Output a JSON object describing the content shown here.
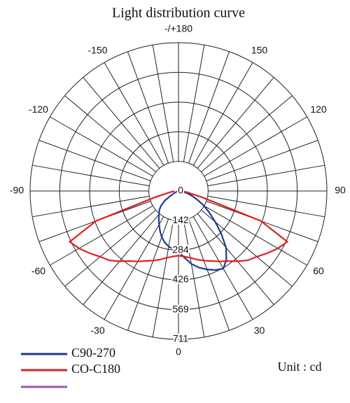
{
  "chart_data": {
    "type": "polar",
    "title": "Light distribution curve",
    "unit_label": "Unit : cd",
    "theta": [
      -90,
      -85,
      -80,
      -75,
      -70,
      -65,
      -60,
      -55,
      -50,
      -45,
      -40,
      -35,
      -30,
      -25,
      -20,
      -15,
      -10,
      -5,
      0,
      5,
      10,
      15,
      20,
      25,
      30,
      35,
      40,
      45,
      50,
      55,
      60,
      65,
      70,
      75,
      80,
      85,
      90
    ],
    "series": [
      {
        "name": "C90-270",
        "color": "#1f3a93",
        "values": [
          0,
          0,
          0,
          0,
          10,
          20,
          40,
          80,
          110,
          130,
          145,
          165,
          185,
          210,
          235,
          255,
          270,
          280,
          290,
          320,
          355,
          380,
          400,
          418,
          430,
          400,
          355,
          290,
          230,
          180,
          140,
          100,
          70,
          45,
          25,
          10,
          0
        ]
      },
      {
        "name": "CO-C180",
        "color": "#e02020",
        "values": [
          20,
          30,
          50,
          120,
          420,
          575,
          550,
          520,
          490,
          470,
          440,
          410,
          390,
          370,
          355,
          340,
          325,
          315,
          310,
          315,
          325,
          340,
          355,
          370,
          390,
          410,
          440,
          470,
          490,
          520,
          550,
          575,
          420,
          120,
          50,
          30,
          20
        ]
      }
    ],
    "rlim": [
      0,
      711
    ],
    "rticks": [
      0,
      142,
      284,
      426,
      569,
      711
    ],
    "thetaticks": [
      -150,
      -120,
      -90,
      -60,
      -30,
      0,
      30,
      60,
      90,
      120,
      150,
      {
        "value": 180,
        "label": "-/+180"
      }
    ]
  }
}
